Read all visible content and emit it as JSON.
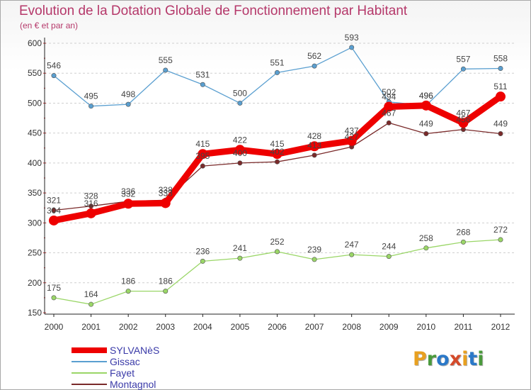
{
  "title": "Evolution de la Dotation Globale de Fonctionnement par Habitant",
  "subtitle": "(en € et par an)",
  "logo": {
    "text": "Proxiti",
    "colors": [
      "#e8a020",
      "#4a9a3c",
      "#2a78c8",
      "#d44a2a",
      "#e8a020",
      "#2a78c8",
      "#4a9a3c"
    ]
  },
  "chart_data": {
    "type": "line",
    "x": [
      "2000",
      "2001",
      "2002",
      "2003",
      "2004",
      "2005",
      "2006",
      "2007",
      "2008",
      "2009",
      "2010",
      "2011",
      "2012"
    ],
    "ylim": [
      150,
      600
    ],
    "yticks": [
      "150",
      "200",
      "250",
      "300",
      "350",
      "400",
      "450",
      "500",
      "550",
      "600"
    ],
    "grid": "horizontal dashed",
    "legend_position": "bottom-left",
    "series": [
      {
        "name": "SYLVANèS",
        "color": "#ee0000",
        "bold": true,
        "values": [
          304,
          316,
          332,
          333,
          415,
          422,
          415,
          428,
          437,
          494,
          496,
          467,
          511
        ],
        "labels": [
          "304",
          "316",
          "332",
          "333",
          "415",
          "422",
          "415",
          "428",
          "437",
          "494",
          "496",
          "467",
          "511"
        ]
      },
      {
        "name": "Gissac",
        "color": "#5a9fd0",
        "values": [
          546,
          495,
          498,
          555,
          531,
          500,
          551,
          562,
          593,
          502,
          496,
          557,
          558
        ],
        "labels": [
          "546",
          "495",
          "498",
          "555",
          "531",
          "500",
          "551",
          "562",
          "593",
          "502",
          "496",
          "557",
          "558"
        ]
      },
      {
        "name": "Fayet",
        "color": "#9ad667",
        "values": [
          175,
          164,
          186,
          186,
          236,
          241,
          252,
          239,
          247,
          244,
          258,
          268,
          272
        ],
        "labels": [
          "175",
          "164",
          "186",
          "186",
          "236",
          "241",
          "252",
          "239",
          "247",
          "244",
          "258",
          "268",
          "272"
        ]
      },
      {
        "name": "Montagnol",
        "color": "#7a2a2a",
        "values": [
          321,
          328,
          336,
          338,
          395,
          400,
          402,
          413,
          427,
          467,
          449,
          456,
          449
        ],
        "labels": [
          "321",
          "328",
          "336",
          "338",
          "395",
          "400",
          "402",
          "413",
          "427",
          "467",
          "449",
          "456",
          "449"
        ]
      }
    ]
  }
}
